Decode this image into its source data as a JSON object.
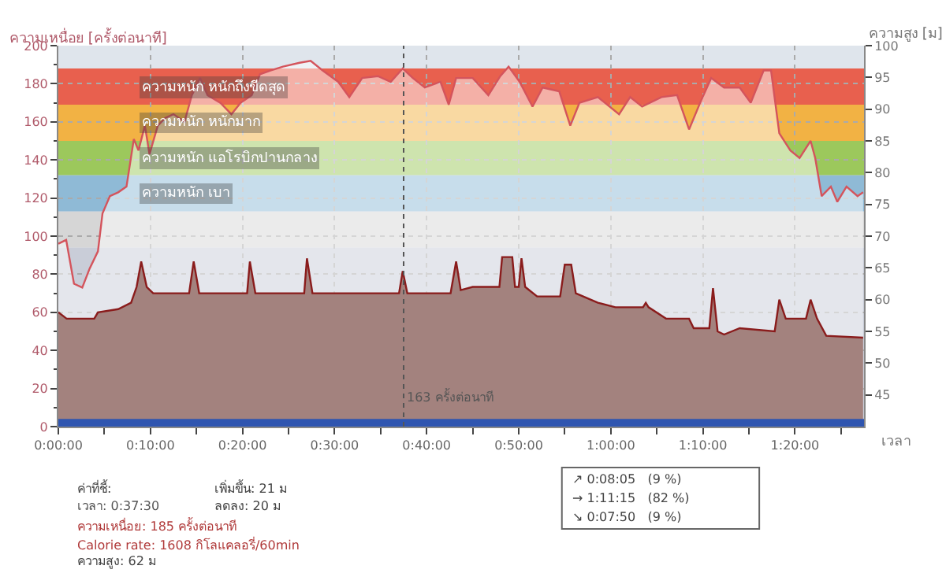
{
  "chart_data": {
    "type": "area",
    "xlabel": "เวลา",
    "ylabel": "ความเหนื่อย [ครั้งต่อนาที]",
    "y2label": "ความสูง [ม]",
    "series": [
      {
        "color": "#d4545c",
        "x": [
          0,
          0.85,
          1.7,
          2.6,
          3.4,
          4.3,
          4.8,
          5.6,
          6.5,
          7.4,
          8.2,
          8.7,
          9.4,
          9.9,
          10.8,
          11.6,
          12.5,
          13.7,
          14.5,
          15.4,
          16.2,
          17.6,
          18.8,
          19.8,
          21.0,
          21.9,
          23.1,
          24.4,
          26.2,
          27.4,
          28.7,
          30.4,
          31.6,
          33.0,
          34.7,
          36.1,
          37.4,
          38.5,
          39.8,
          41.5,
          42.4,
          43.2,
          45.0,
          46.7,
          48.0,
          48.9,
          50.1,
          51.5,
          52.6,
          54.4,
          55.6,
          56.6,
          58.6,
          60.9,
          62.1,
          63.4,
          65.5,
          67.2,
          68.5,
          69.7,
          70.9,
          72.3,
          74.0,
          75.2,
          76.6,
          77.4,
          78.3,
          79.5,
          80.5,
          81.7,
          82.2,
          82.9,
          83.9,
          84.6,
          85.6,
          86.8,
          87.4
        ],
        "values": [
          96,
          98,
          75,
          73,
          83,
          92,
          112,
          121,
          123,
          126,
          151,
          145,
          158,
          143,
          158,
          162,
          164,
          160,
          174,
          183,
          174,
          170,
          164,
          170,
          174,
          185,
          187,
          189,
          191,
          192,
          187,
          181,
          173,
          183,
          184,
          181,
          188,
          183,
          178,
          181,
          169,
          183,
          183,
          174,
          184,
          189,
          181,
          168,
          178,
          176,
          158,
          170,
          173,
          164,
          173,
          168,
          173,
          174,
          156,
          170,
          183,
          178,
          178,
          170,
          187,
          187,
          154,
          145,
          141,
          150,
          141,
          121,
          126,
          118,
          126,
          121,
          123
        ]
      },
      {
        "axis": "y2",
        "color": "#a3827e",
        "x": [
          0,
          0.9,
          3.9,
          4.3,
          6.5,
          7.9,
          8.5,
          9.0,
          9.6,
          10.3,
          14.2,
          14.7,
          15.3,
          20.5,
          20.8,
          21.4,
          26.7,
          27.0,
          27.6,
          37.0,
          37.4,
          37.9,
          42.6,
          43.2,
          43.7,
          45,
          47.9,
          48.2,
          49.3,
          49.6,
          50.0,
          50.3,
          50.7,
          52,
          54.5,
          55.0,
          55.7,
          56.2,
          58.6,
          60.5,
          63.5,
          63.8,
          64.1,
          66,
          68.5,
          69,
          70.7,
          71.1,
          71.6,
          72.3,
          74,
          77.8,
          78.3,
          79,
          81.2,
          81.7,
          82.4,
          83.4,
          87.4
        ],
        "values": [
          58,
          57,
          57,
          58,
          58.5,
          59.5,
          62,
          66,
          62,
          61,
          61,
          66,
          61,
          61,
          66,
          61,
          61,
          66.5,
          61,
          61,
          64.5,
          61,
          61,
          66,
          61.5,
          62,
          62,
          66.7,
          66.7,
          62,
          62,
          66.5,
          62,
          60.5,
          60.5,
          65.5,
          65.5,
          61,
          59.5,
          58.8,
          58.8,
          59.5,
          58.8,
          57,
          57,
          55.5,
          55.5,
          61.8,
          55,
          54.5,
          55.5,
          55,
          60,
          57,
          57,
          60,
          57,
          54.3,
          54
        ]
      }
    ],
    "xlim": [
      0,
      87.5
    ],
    "xticks": [
      {
        "value": 0,
        "label": "0:00:00"
      },
      {
        "value": 5,
        "label": null
      },
      {
        "value": 10,
        "label": "0:10:00"
      },
      {
        "value": 15,
        "label": null
      },
      {
        "value": 20,
        "label": "0:20:00"
      },
      {
        "value": 25,
        "label": null
      },
      {
        "value": 30,
        "label": "0:30:00"
      },
      {
        "value": 35,
        "label": null
      },
      {
        "value": 40,
        "label": "0:40:00"
      },
      {
        "value": 45,
        "label": null
      },
      {
        "value": 50,
        "label": "0:50:00"
      },
      {
        "value": 55,
        "label": null
      },
      {
        "value": 60,
        "label": "1:00:00"
      },
      {
        "value": 65,
        "label": null
      },
      {
        "value": 70,
        "label": "1:10:00"
      },
      {
        "value": 75,
        "label": null
      },
      {
        "value": 80,
        "label": "1:20:00"
      },
      {
        "value": 85,
        "label": null
      }
    ],
    "ylim": [
      0,
      200
    ],
    "yticks": [
      0,
      {
        "value": 10,
        "label": null
      },
      20,
      {
        "value": 30,
        "label": null
      },
      40,
      {
        "value": 50,
        "label": null
      },
      60,
      {
        "value": 70,
        "label": null
      },
      80,
      {
        "value": 90,
        "label": null
      },
      100,
      {
        "value": 110,
        "label": null
      },
      120,
      {
        "value": 130,
        "label": null
      },
      140,
      {
        "value": 150,
        "label": null
      },
      160,
      {
        "value": 170,
        "label": null
      },
      180,
      {
        "value": 190,
        "label": null
      },
      200
    ],
    "y2lim": [
      40,
      100
    ],
    "y2ticks": [
      45,
      50,
      55,
      60,
      65,
      70,
      75,
      80,
      85,
      90,
      95,
      100
    ],
    "grid": true,
    "bands": [
      {
        "axis": "y",
        "from": 0,
        "to": 94,
        "color": "#c9cdd8"
      },
      {
        "axis": "y",
        "from": 94,
        "to": 113,
        "color": "#d6d6d6"
      },
      {
        "axis": "y",
        "from": 113,
        "to": 132,
        "color": "#8fbad6",
        "label": "ความหนัก เบา"
      },
      {
        "axis": "y",
        "from": 132,
        "to": 150,
        "color": "#9cc85c",
        "label": "ความหนัก แอโรบิกปานกลาง"
      },
      {
        "axis": "y",
        "from": 150,
        "to": 169,
        "color": "#f2b244",
        "label": "ความหนัก หนักมาก"
      },
      {
        "axis": "y",
        "from": 169,
        "to": 188,
        "color": "#e8604e",
        "label": "ความหนัก หนักถึงขีดสุด"
      },
      {
        "axis": "y",
        "from": 0,
        "to": 4,
        "color": "#2f55b0"
      }
    ],
    "ref_lines": [
      {
        "axis": "x",
        "value": 37.5,
        "label": "163 ครั้งต่อนาที",
        "color": "#555555",
        "line_style": "dotted"
      }
    ],
    "annotations": [
      "ค่าที่ชี้:",
      "เวลา: 0:37:30",
      "ความเหนื่อย: 185 ครั้งต่อนาที",
      "Calorie rate: 1608 กิโลแคลอรี่/60min",
      "ความสูง: 62 ม",
      "เพิ่มขึ้น: 21 ม",
      "ลดลง: 20 ม",
      "↗ 0:08:05   (9 %)",
      "→ 1:11:15   (82 %)",
      "↘ 0:07:50   (9 %)"
    ]
  }
}
